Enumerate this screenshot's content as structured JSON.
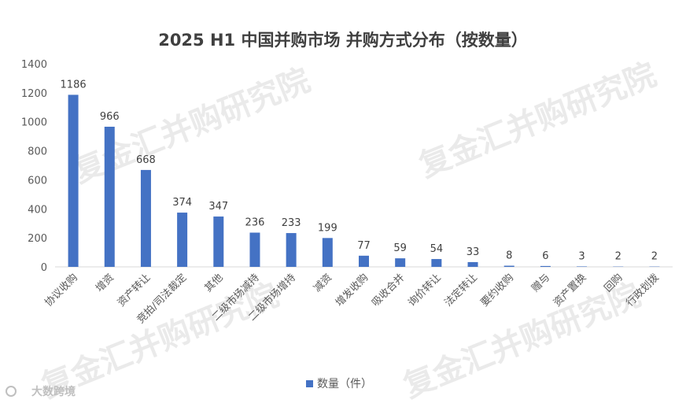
{
  "chart_data": {
    "type": "bar",
    "title": "2025 H1 中国并购市场 并购方式分布（按数量）",
    "categories": [
      "协议收购",
      "增资",
      "资产转让",
      "竞拍/司法裁定",
      "其他",
      "二级市场减持",
      "二级市场增持",
      "减资",
      "增发收购",
      "吸收合并",
      "询价转让",
      "法定转让",
      "要约收购",
      "赠与",
      "资产置换",
      "回购",
      "行政划拨"
    ],
    "series": [
      {
        "name": "数量（件）",
        "values": [
          1186,
          966,
          668,
          374,
          347,
          236,
          233,
          199,
          77,
          59,
          54,
          33,
          8,
          6,
          3,
          2,
          2
        ]
      }
    ],
    "ylim": [
      0,
      1400
    ],
    "yticks": [
      0,
      200,
      400,
      600,
      800,
      1000,
      1200,
      1400
    ],
    "grid": false,
    "legend_position": "bottom",
    "bar_color": "#4472c4"
  },
  "watermark": "复金汇并购研究院",
  "corner_brand": "大数跨境"
}
